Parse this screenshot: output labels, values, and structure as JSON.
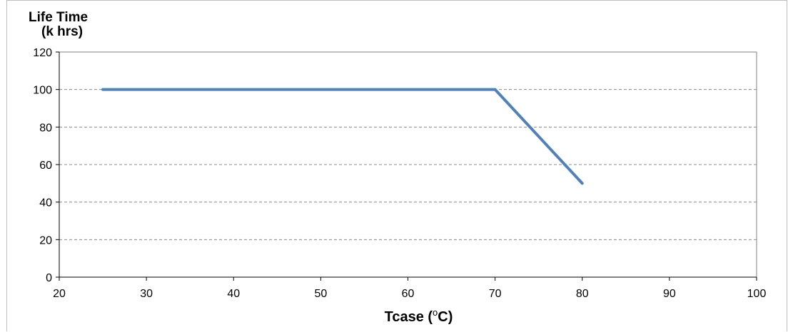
{
  "chart_data": {
    "type": "line",
    "ylabel_line1": "Life Time",
    "ylabel_line2": "(k hrs)",
    "xlabel_prefix": "Tcase (",
    "xlabel_sup": "o",
    "xlabel_suffix": "C)",
    "xlim": [
      20,
      100
    ],
    "ylim": [
      0,
      120
    ],
    "x_ticks": [
      20,
      30,
      40,
      50,
      60,
      70,
      80,
      90,
      100
    ],
    "y_ticks": [
      0,
      20,
      40,
      60,
      80,
      100,
      120
    ],
    "grid": "horizontal-dashed",
    "series": [
      {
        "x": [
          25,
          70,
          80
        ],
        "y": [
          100,
          100,
          50
        ],
        "color": "#4f81bd"
      }
    ]
  }
}
